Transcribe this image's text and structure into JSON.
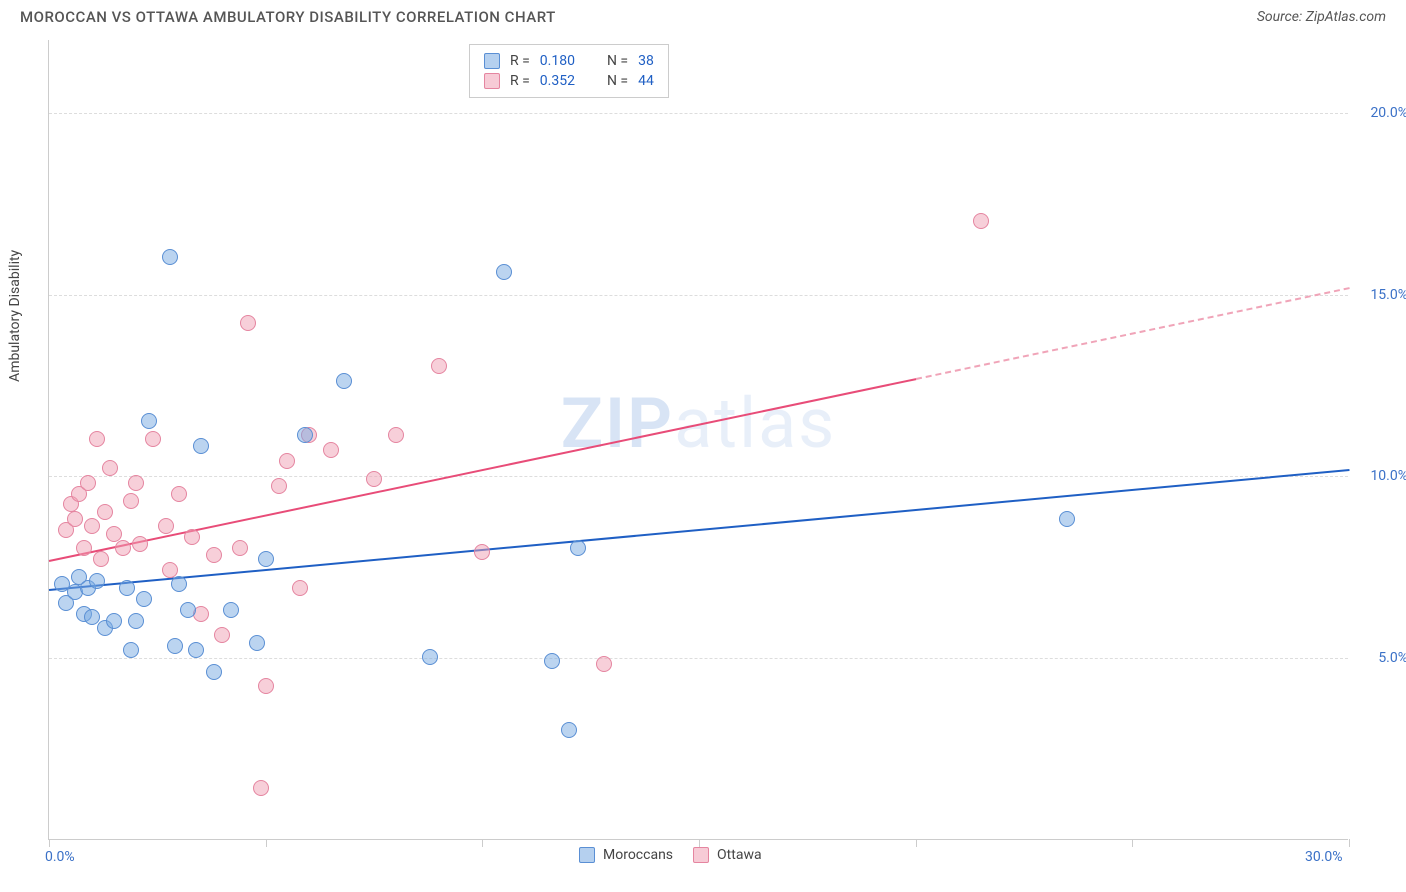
{
  "header": {
    "title": "MOROCCAN VS OTTAWA AMBULATORY DISABILITY CORRELATION CHART",
    "source": "Source: ZipAtlas.com"
  },
  "watermark": {
    "part1": "ZIP",
    "part2": "atlas"
  },
  "chart": {
    "type": "scatter",
    "y_axis_title": "Ambulatory Disability",
    "xlim": [
      0,
      30
    ],
    "ylim": [
      0,
      22
    ],
    "x_ticks": [
      0,
      5,
      10,
      15,
      20,
      25,
      30
    ],
    "x_tick_labels": {
      "0": "0.0%",
      "30": "30.0%"
    },
    "y_grid": [
      5,
      10,
      15,
      20
    ],
    "y_tick_labels": {
      "5": "5.0%",
      "10": "10.0%",
      "15": "15.0%",
      "20": "20.0%"
    },
    "background_color": "#ffffff",
    "grid_color": "#dddddd",
    "axis_color": "#cccccc",
    "label_color": "#3b71c7",
    "axis_title_color": "#444444",
    "marker_size": 16,
    "series": {
      "blue": {
        "label": "Moroccans",
        "fill": "rgba(120,170,225,0.5)",
        "stroke": "#5a8fd4",
        "trend_color": "#1f5fc4",
        "trend_width": 2,
        "R": "0.180",
        "N": "38",
        "points": [
          [
            0.3,
            7.0
          ],
          [
            0.4,
            6.5
          ],
          [
            0.6,
            6.8
          ],
          [
            0.7,
            7.2
          ],
          [
            0.8,
            6.2
          ],
          [
            0.9,
            6.9
          ],
          [
            1.0,
            6.1
          ],
          [
            1.1,
            7.1
          ],
          [
            1.3,
            5.8
          ],
          [
            1.5,
            6.0
          ],
          [
            1.8,
            6.9
          ],
          [
            1.9,
            5.2
          ],
          [
            2.0,
            6.0
          ],
          [
            2.2,
            6.6
          ],
          [
            2.3,
            11.5
          ],
          [
            2.8,
            16.0
          ],
          [
            2.9,
            5.3
          ],
          [
            3.0,
            7.0
          ],
          [
            3.2,
            6.3
          ],
          [
            3.4,
            5.2
          ],
          [
            3.5,
            10.8
          ],
          [
            3.8,
            4.6
          ],
          [
            4.2,
            6.3
          ],
          [
            4.8,
            5.4
          ],
          [
            5.0,
            7.7
          ],
          [
            5.9,
            11.1
          ],
          [
            6.8,
            12.6
          ],
          [
            8.8,
            5.0
          ],
          [
            10.5,
            15.6
          ],
          [
            11.6,
            4.9
          ],
          [
            12.0,
            3.0
          ],
          [
            12.2,
            8.0
          ],
          [
            23.5,
            8.8
          ]
        ],
        "trend": {
          "x1": 0,
          "y1": 6.9,
          "x2": 30,
          "y2": 10.2,
          "dashed_from": 30
        }
      },
      "pink": {
        "label": "Ottawa",
        "fill": "rgba(240,160,180,0.5)",
        "stroke": "#e585a0",
        "trend_color": "#e84c78",
        "trend_dashed_color": "#f0a4b8",
        "trend_width": 2,
        "R": "0.352",
        "N": "44",
        "points": [
          [
            0.4,
            8.5
          ],
          [
            0.5,
            9.2
          ],
          [
            0.6,
            8.8
          ],
          [
            0.7,
            9.5
          ],
          [
            0.8,
            8.0
          ],
          [
            0.9,
            9.8
          ],
          [
            1.0,
            8.6
          ],
          [
            1.1,
            11.0
          ],
          [
            1.2,
            7.7
          ],
          [
            1.3,
            9.0
          ],
          [
            1.4,
            10.2
          ],
          [
            1.5,
            8.4
          ],
          [
            1.7,
            8.0
          ],
          [
            1.9,
            9.3
          ],
          [
            2.0,
            9.8
          ],
          [
            2.1,
            8.1
          ],
          [
            2.4,
            11.0
          ],
          [
            2.7,
            8.6
          ],
          [
            2.8,
            7.4
          ],
          [
            3.0,
            9.5
          ],
          [
            3.3,
            8.3
          ],
          [
            3.5,
            6.2
          ],
          [
            3.8,
            7.8
          ],
          [
            4.0,
            5.6
          ],
          [
            4.4,
            8.0
          ],
          [
            4.6,
            14.2
          ],
          [
            4.9,
            1.4
          ],
          [
            5.0,
            4.2
          ],
          [
            5.3,
            9.7
          ],
          [
            5.5,
            10.4
          ],
          [
            5.8,
            6.9
          ],
          [
            6.0,
            11.1
          ],
          [
            6.5,
            10.7
          ],
          [
            7.5,
            9.9
          ],
          [
            8.0,
            11.1
          ],
          [
            9.0,
            13.0
          ],
          [
            10.0,
            7.9
          ],
          [
            12.8,
            4.8
          ],
          [
            21.5,
            17.0
          ]
        ],
        "trend": {
          "x1": 0,
          "y1": 7.7,
          "x2": 30,
          "y2": 15.2,
          "dashed_from": 20
        }
      }
    }
  },
  "legend_top": {
    "rows": [
      {
        "series": "blue",
        "r_label": "R =",
        "r_value": "0.180",
        "n_label": "N =",
        "n_value": "38"
      },
      {
        "series": "pink",
        "r_label": "R =",
        "r_value": "0.352",
        "n_label": "N =",
        "n_value": "44"
      }
    ]
  },
  "legend_bottom": {
    "items": [
      {
        "series": "blue",
        "label": "Moroccans"
      },
      {
        "series": "pink",
        "label": "Ottawa"
      }
    ]
  }
}
